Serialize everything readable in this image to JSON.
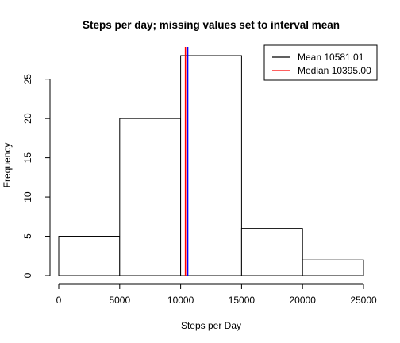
{
  "chart_data": {
    "type": "histogram",
    "title": "Steps per day; missing values set to interval mean",
    "xlabel": "Steps per Day",
    "ylabel": "Frequency",
    "bins": [
      {
        "from": 0,
        "to": 5000,
        "count": 5
      },
      {
        "from": 5000,
        "to": 10000,
        "count": 20
      },
      {
        "from": 10000,
        "to": 15000,
        "count": 28
      },
      {
        "from": 15000,
        "to": 20000,
        "count": 6
      },
      {
        "from": 20000,
        "to": 25000,
        "count": 2
      }
    ],
    "xlim": [
      0,
      25000
    ],
    "ylim": [
      0,
      28
    ],
    "x_ticks": [
      0,
      5000,
      10000,
      15000,
      20000,
      25000
    ],
    "y_ticks": [
      0,
      5,
      10,
      15,
      20,
      25
    ],
    "lines": [
      {
        "name": "Mean 10581.01",
        "value": 10581.01,
        "color": "#0000ff"
      },
      {
        "name": "Median 10395.00",
        "value": 10395.0,
        "color": "#ff0000"
      }
    ],
    "legend": {
      "position": "top-right",
      "entries": [
        {
          "label": "Mean 10581.01",
          "color": "#000000"
        },
        {
          "label": "Median 10395.00",
          "color": "#ff0000"
        }
      ]
    },
    "grid": false,
    "bar_fill": "#ffffff",
    "bar_stroke": "#000000"
  }
}
